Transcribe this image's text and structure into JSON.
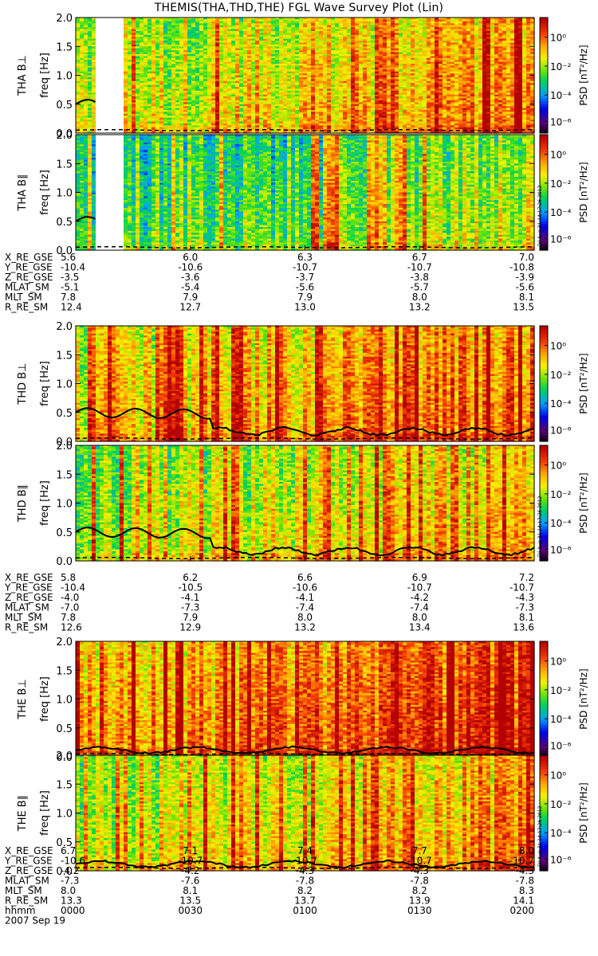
{
  "title": "THEMIS(THA,THD,THE) FGL Wave Survey Plot (Lin)",
  "colorbar": {
    "label": "PSD [nT²/Hz]",
    "ticks": [
      "10⁰",
      "10⁻²",
      "10⁻⁴",
      "10⁻⁶"
    ],
    "stamp": "Fri Aug 31 14:17:26 2012"
  },
  "chart_data": {
    "type": "heatmap",
    "ylabel": "freq [Hz]",
    "ylim": [
      0,
      2.0
    ],
    "yticks": [
      "0.0",
      "0.5",
      "1.0",
      "1.5",
      "2.0"
    ],
    "x_time_ticks": [
      "0000",
      "0030",
      "0100",
      "0130",
      "0200"
    ],
    "date": "2007 Sep 19",
    "zscale": "log",
    "zrange_decades": [
      -7,
      1
    ],
    "panels": [
      {
        "label": "THA B⊥",
        "level": 0.62,
        "gap": true
      },
      {
        "label": "THA B∥",
        "level": 0.45,
        "gap": true
      },
      {
        "label": "THD B⊥",
        "level": 0.68,
        "gap": false
      },
      {
        "label": "THD B∥",
        "level": 0.58,
        "gap": false
      },
      {
        "label": "THE B⊥",
        "level": 0.75,
        "gap": false
      },
      {
        "label": "THE B∥",
        "level": 0.62,
        "gap": false
      }
    ],
    "lines_description": "solid black line ~0.5 Hz early, dropping to ~0.1–0.2 Hz; dashed line near 0.05 Hz",
    "ephemeris": [
      {
        "rows": [
          {
            "name": "X_RE_GSE",
            "values": [
              "5.6",
              "6.0",
              "6.3",
              "6.7",
              "7.0"
            ]
          },
          {
            "name": "Y_RE_GSE",
            "values": [
              "-10.4",
              "-10.6",
              "-10.7",
              "-10.7",
              "-10.8"
            ]
          },
          {
            "name": "Z_RE_GSE",
            "values": [
              "-3.5",
              "-3.6",
              "-3.7",
              "-3.8",
              "-3.9"
            ]
          },
          {
            "name": "MLAT_SM",
            "values": [
              "-5.1",
              "-5.4",
              "-5.6",
              "-5.7",
              "-5.6"
            ]
          },
          {
            "name": "MLT_SM",
            "values": [
              "7.8",
              "7.9",
              "7.9",
              "8.0",
              "8.1"
            ]
          },
          {
            "name": "R_RE_SM",
            "values": [
              "12.4",
              "12.7",
              "13.0",
              "13.2",
              "13.5"
            ]
          }
        ]
      },
      {
        "rows": [
          {
            "name": "X_RE_GSE",
            "values": [
              "5.8",
              "6.2",
              "6.6",
              "6.9",
              "7.2"
            ]
          },
          {
            "name": "Y_RE_GSE",
            "values": [
              "-10.4",
              "-10.5",
              "-10.6",
              "-10.7",
              "-10.7"
            ]
          },
          {
            "name": "Z_RE_GSE",
            "values": [
              "-4.0",
              "-4.1",
              "-4.1",
              "-4.2",
              "-4.3"
            ]
          },
          {
            "name": "MLAT_SM",
            "values": [
              "-7.0",
              "-7.3",
              "-7.4",
              "-7.4",
              "-7.3"
            ]
          },
          {
            "name": "MLT_SM",
            "values": [
              "7.8",
              "7.9",
              "8.0",
              "8.0",
              "8.1"
            ]
          },
          {
            "name": "R_RE_SM",
            "values": [
              "12.6",
              "12.9",
              "13.2",
              "13.4",
              "13.6"
            ]
          }
        ]
      },
      {
        "rows": [
          {
            "name": "X_RE_GSE",
            "values": [
              "6.7",
              "7.1",
              "7.4",
              "7.7",
              "8.0"
            ]
          },
          {
            "name": "Y_RE_GSE",
            "values": [
              "-10.6",
              "-10.7",
              "-10.7",
              "-10.7",
              "-10.7"
            ]
          },
          {
            "name": "Z_RE_GSE",
            "values": [
              "-4.2",
              "-4.2",
              "-4.3",
              "-4.3",
              "-4.3"
            ]
          },
          {
            "name": "MLAT_SM",
            "values": [
              "-7.3",
              "-7.6",
              "-7.8",
              "-7.8",
              "-7.8"
            ]
          },
          {
            "name": "MLT_SM",
            "values": [
              "8.0",
              "8.1",
              "8.2",
              "8.2",
              "8.3"
            ]
          },
          {
            "name": "R_RE_SM",
            "values": [
              "13.3",
              "13.5",
              "13.7",
              "13.9",
              "14.1"
            ]
          },
          {
            "name": "hhmm",
            "values": [
              "0000",
              "0030",
              "0100",
              "0130",
              "0200"
            ]
          }
        ]
      }
    ]
  }
}
